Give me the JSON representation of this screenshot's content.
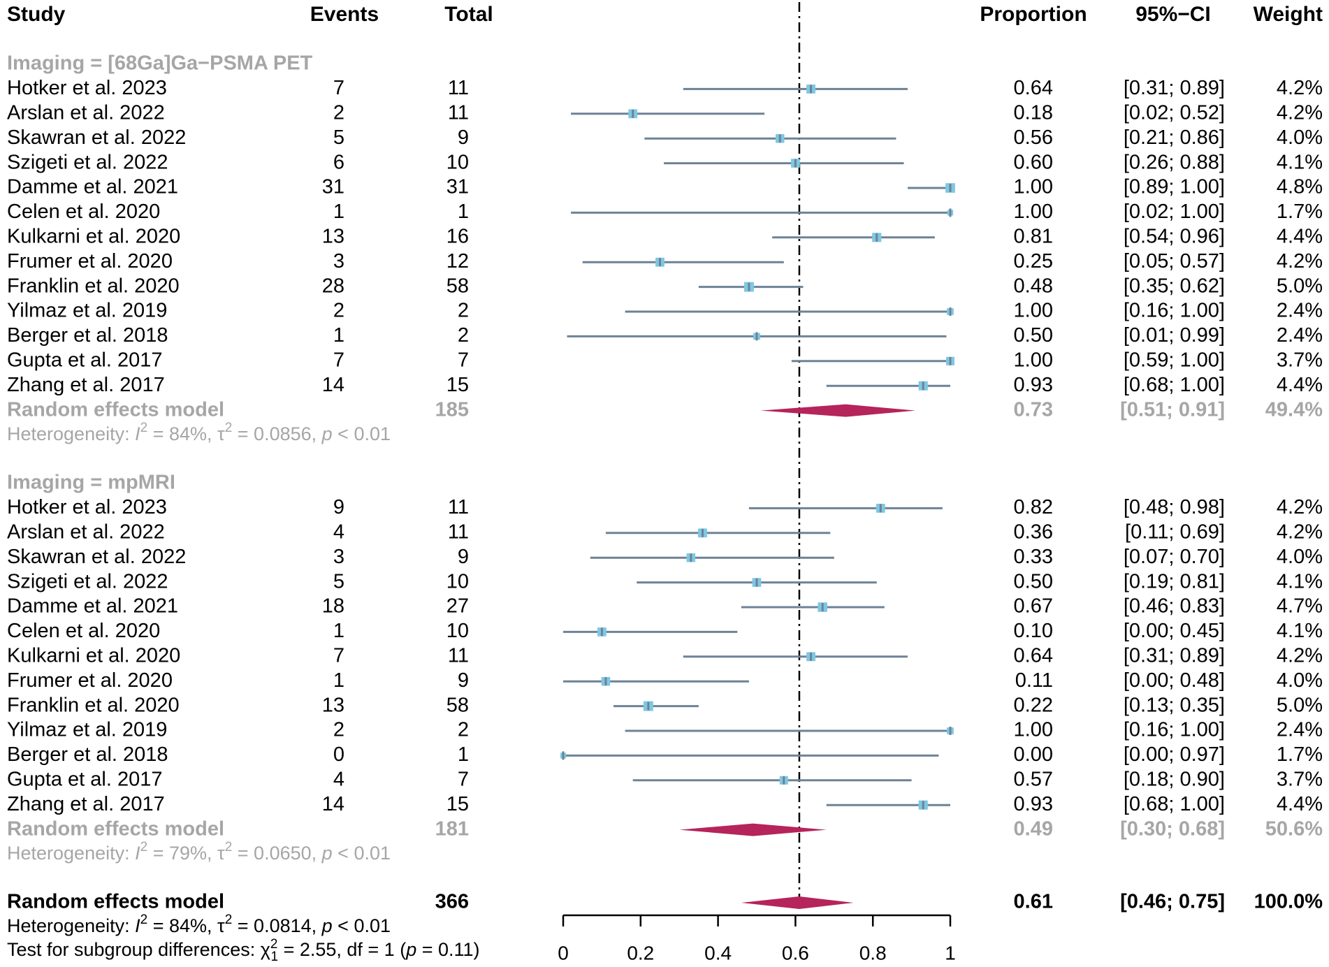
{
  "chart_data": {
    "type": "forest",
    "columns": {
      "study": "Study",
      "events": "Events",
      "total": "Total",
      "proportion": "Proportion",
      "ci": "95%−CI",
      "weight": "Weight"
    },
    "xlim": [
      0,
      1
    ],
    "reference_line": 0.61,
    "x_ticks": [
      "0",
      "0.2",
      "0.4",
      "0.6",
      "0.8",
      "1"
    ],
    "x_tick_values": [
      0,
      0.2,
      0.4,
      0.6,
      0.8,
      1
    ],
    "colors": {
      "box": "#7ec8e3",
      "line": "#6e8296",
      "diamond": "#b5245a",
      "gray": "#a6a6a6"
    },
    "groups": [
      {
        "label": "Imaging = [68Ga]Ga−PSMA PET",
        "studies": [
          {
            "study": "Hotker et al. 2023",
            "events": "7",
            "total": "11",
            "prop": 0.64,
            "lo": 0.31,
            "hi": 0.89,
            "proportion": "0.64",
            "ci": "[0.31; 0.89]",
            "weight": "4.2%",
            "w": 4.2
          },
          {
            "study": "Arslan et al. 2022",
            "events": "2",
            "total": "11",
            "prop": 0.18,
            "lo": 0.02,
            "hi": 0.52,
            "proportion": "0.18",
            "ci": "[0.02; 0.52]",
            "weight": "4.2%",
            "w": 4.2
          },
          {
            "study": "Skawran et al. 2022",
            "events": "5",
            "total": "9",
            "prop": 0.56,
            "lo": 0.21,
            "hi": 0.86,
            "proportion": "0.56",
            "ci": "[0.21; 0.86]",
            "weight": "4.0%",
            "w": 4.0
          },
          {
            "study": "Szigeti et al. 2022",
            "events": "6",
            "total": "10",
            "prop": 0.6,
            "lo": 0.26,
            "hi": 0.88,
            "proportion": "0.60",
            "ci": "[0.26; 0.88]",
            "weight": "4.1%",
            "w": 4.1
          },
          {
            "study": "Damme et al. 2021",
            "events": "31",
            "total": "31",
            "prop": 1.0,
            "lo": 0.89,
            "hi": 1.0,
            "proportion": "1.00",
            "ci": "[0.89; 1.00]",
            "weight": "4.8%",
            "w": 4.8
          },
          {
            "study": "Celen et al. 2020",
            "events": "1",
            "total": "1",
            "prop": 1.0,
            "lo": 0.02,
            "hi": 1.0,
            "proportion": "1.00",
            "ci": "[0.02; 1.00]",
            "weight": "1.7%",
            "w": 1.7
          },
          {
            "study": "Kulkarni et al. 2020",
            "events": "13",
            "total": "16",
            "prop": 0.81,
            "lo": 0.54,
            "hi": 0.96,
            "proportion": "0.81",
            "ci": "[0.54; 0.96]",
            "weight": "4.4%",
            "w": 4.4
          },
          {
            "study": "Frumer et al. 2020",
            "events": "3",
            "total": "12",
            "prop": 0.25,
            "lo": 0.05,
            "hi": 0.57,
            "proportion": "0.25",
            "ci": "[0.05; 0.57]",
            "weight": "4.2%",
            "w": 4.2
          },
          {
            "study": "Franklin et al. 2020",
            "events": "28",
            "total": "58",
            "prop": 0.48,
            "lo": 0.35,
            "hi": 0.62,
            "proportion": "0.48",
            "ci": "[0.35; 0.62]",
            "weight": "5.0%",
            "w": 5.0
          },
          {
            "study": "Yilmaz et al. 2019",
            "events": "2",
            "total": "2",
            "prop": 1.0,
            "lo": 0.16,
            "hi": 1.0,
            "proportion": "1.00",
            "ci": "[0.16; 1.00]",
            "weight": "2.4%",
            "w": 2.4
          },
          {
            "study": "Berger et al. 2018",
            "events": "1",
            "total": "2",
            "prop": 0.5,
            "lo": 0.01,
            "hi": 0.99,
            "proportion": "0.50",
            "ci": "[0.01; 0.99]",
            "weight": "2.4%",
            "w": 2.4
          },
          {
            "study": "Gupta et al. 2017",
            "events": "7",
            "total": "7",
            "prop": 1.0,
            "lo": 0.59,
            "hi": 1.0,
            "proportion": "1.00",
            "ci": "[0.59; 1.00]",
            "weight": "3.7%",
            "w": 3.7
          },
          {
            "study": "Zhang et al. 2017",
            "events": "14",
            "total": "15",
            "prop": 0.93,
            "lo": 0.68,
            "hi": 1.0,
            "proportion": "0.93",
            "ci": "[0.68; 1.00]",
            "weight": "4.4%",
            "w": 4.4
          }
        ],
        "pooled": {
          "label": "Random effects model",
          "total": "185",
          "prop": 0.73,
          "lo": 0.51,
          "hi": 0.91,
          "proportion": "0.73",
          "ci": "[0.51; 0.91]",
          "weight": "49.4%"
        },
        "heterogeneity": {
          "prefix": "Heterogeneity: ",
          "i2": "I",
          "i2_value": " = 84%, ",
          "tau": "τ",
          "tau_value": " = 0.0856, ",
          "p": "p",
          "p_value": " < 0.01",
          "sup": "2"
        }
      },
      {
        "label": "Imaging = mpMRI",
        "studies": [
          {
            "study": "Hotker et al. 2023",
            "events": "9",
            "total": "11",
            "prop": 0.82,
            "lo": 0.48,
            "hi": 0.98,
            "proportion": "0.82",
            "ci": "[0.48; 0.98]",
            "weight": "4.2%",
            "w": 4.2
          },
          {
            "study": "Arslan et al. 2022",
            "events": "4",
            "total": "11",
            "prop": 0.36,
            "lo": 0.11,
            "hi": 0.69,
            "proportion": "0.36",
            "ci": "[0.11; 0.69]",
            "weight": "4.2%",
            "w": 4.2
          },
          {
            "study": "Skawran et al. 2022",
            "events": "3",
            "total": "9",
            "prop": 0.33,
            "lo": 0.07,
            "hi": 0.7,
            "proportion": "0.33",
            "ci": "[0.07; 0.70]",
            "weight": "4.0%",
            "w": 4.0
          },
          {
            "study": "Szigeti et al. 2022",
            "events": "5",
            "total": "10",
            "prop": 0.5,
            "lo": 0.19,
            "hi": 0.81,
            "proportion": "0.50",
            "ci": "[0.19; 0.81]",
            "weight": "4.1%",
            "w": 4.1
          },
          {
            "study": "Damme et al. 2021",
            "events": "18",
            "total": "27",
            "prop": 0.67,
            "lo": 0.46,
            "hi": 0.83,
            "proportion": "0.67",
            "ci": "[0.46; 0.83]",
            "weight": "4.7%",
            "w": 4.7
          },
          {
            "study": "Celen et al. 2020",
            "events": "1",
            "total": "10",
            "prop": 0.1,
            "lo": 0.0,
            "hi": 0.45,
            "proportion": "0.10",
            "ci": "[0.00; 0.45]",
            "weight": "4.1%",
            "w": 4.1
          },
          {
            "study": "Kulkarni et al. 2020",
            "events": "7",
            "total": "11",
            "prop": 0.64,
            "lo": 0.31,
            "hi": 0.89,
            "proportion": "0.64",
            "ci": "[0.31; 0.89]",
            "weight": "4.2%",
            "w": 4.2
          },
          {
            "study": "Frumer et al. 2020",
            "events": "1",
            "total": "9",
            "prop": 0.11,
            "lo": 0.0,
            "hi": 0.48,
            "proportion": "0.11",
            "ci": "[0.00; 0.48]",
            "weight": "4.0%",
            "w": 4.0
          },
          {
            "study": "Franklin et al. 2020",
            "events": "13",
            "total": "58",
            "prop": 0.22,
            "lo": 0.13,
            "hi": 0.35,
            "proportion": "0.22",
            "ci": "[0.13; 0.35]",
            "weight": "5.0%",
            "w": 5.0
          },
          {
            "study": "Yilmaz et al. 2019",
            "events": "2",
            "total": "2",
            "prop": 1.0,
            "lo": 0.16,
            "hi": 1.0,
            "proportion": "1.00",
            "ci": "[0.16; 1.00]",
            "weight": "2.4%",
            "w": 2.4
          },
          {
            "study": "Berger et al. 2018",
            "events": "0",
            "total": "1",
            "prop": 0.0,
            "lo": 0.0,
            "hi": 0.97,
            "proportion": "0.00",
            "ci": "[0.00; 0.97]",
            "weight": "1.7%",
            "w": 1.7
          },
          {
            "study": "Gupta et al. 2017",
            "events": "4",
            "total": "7",
            "prop": 0.57,
            "lo": 0.18,
            "hi": 0.9,
            "proportion": "0.57",
            "ci": "[0.18; 0.90]",
            "weight": "3.7%",
            "w": 3.7
          },
          {
            "study": "Zhang et al. 2017",
            "events": "14",
            "total": "15",
            "prop": 0.93,
            "lo": 0.68,
            "hi": 1.0,
            "proportion": "0.93",
            "ci": "[0.68; 1.00]",
            "weight": "4.4%",
            "w": 4.4
          }
        ],
        "pooled": {
          "label": "Random effects model",
          "total": "181",
          "prop": 0.49,
          "lo": 0.3,
          "hi": 0.68,
          "proportion": "0.49",
          "ci": "[0.30; 0.68]",
          "weight": "50.6%"
        },
        "heterogeneity": {
          "prefix": "Heterogeneity: ",
          "i2": "I",
          "i2_value": " = 79%, ",
          "tau": "τ",
          "tau_value": " = 0.0650, ",
          "p": "p",
          "p_value": " < 0.01",
          "sup": "2"
        }
      }
    ],
    "overall": {
      "label": "Random effects model",
      "total": "366",
      "prop": 0.61,
      "lo": 0.46,
      "hi": 0.75,
      "proportion": "0.61",
      "ci": "[0.46; 0.75]",
      "weight": "100.0%",
      "heterogeneity": {
        "prefix": "Heterogeneity: ",
        "i2": "I",
        "i2_value": " = 84%, ",
        "tau": "τ",
        "tau_value": " = 0.0814, ",
        "p": "p",
        "p_value": " < 0.01",
        "sup": "2"
      },
      "subgroup_test": {
        "prefix": "Test for subgroup differences: ",
        "chi": "χ",
        "sup": "2",
        "sub": "1",
        "chi_value": " = 2.55, df = 1 (",
        "p": "p",
        "p_value": " = 0.11)"
      }
    }
  }
}
